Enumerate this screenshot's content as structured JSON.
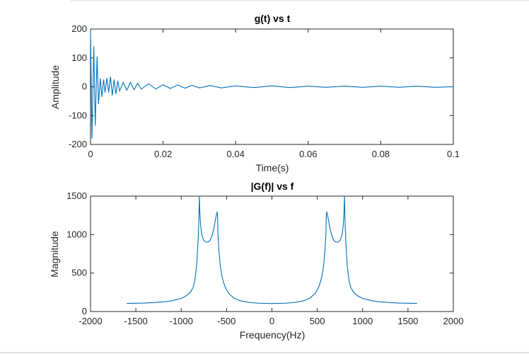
{
  "chart_data": [
    {
      "type": "line",
      "title": "g(t) vs t",
      "xlabel": "Time(s)",
      "ylabel": "Amplitude",
      "xlim": [
        0,
        0.1
      ],
      "ylim": [
        -200,
        200
      ],
      "xticks": [
        0,
        0.02,
        0.04,
        0.06,
        0.08,
        0.1
      ],
      "xtick_labels": [
        "0",
        "0.02",
        "0.04",
        "0.06",
        "0.08",
        "0.1"
      ],
      "yticks": [
        -200,
        -100,
        0,
        100,
        200
      ],
      "ytick_labels": [
        "-200",
        "-100",
        "0",
        "100",
        "200"
      ],
      "grid": false,
      "series": [
        {
          "color": "#0072BD",
          "x": [
            0,
            0.0004,
            0.0009,
            0.0013,
            0.0018,
            0.0022,
            0.0027,
            0.0031,
            0.0036,
            0.004,
            0.0045,
            0.005,
            0.0055,
            0.006,
            0.0065,
            0.007,
            0.0075,
            0.008,
            0.009,
            0.01,
            0.011,
            0.012,
            0.013,
            0.014,
            0.016,
            0.018,
            0.02,
            0.022,
            0.024,
            0.026,
            0.028,
            0.03,
            0.033,
            0.036,
            0.04,
            0.045,
            0.05,
            0.055,
            0.06,
            0.065,
            0.07,
            0.075,
            0.08,
            0.085,
            0.09,
            0.095,
            0.1
          ],
          "y": [
            195,
            -180,
            140,
            -135,
            105,
            -60,
            30,
            -35,
            25,
            -20,
            30,
            -20,
            35,
            -30,
            25,
            -25,
            20,
            -15,
            15,
            -12,
            15,
            -10,
            12,
            -8,
            10,
            -8,
            7,
            -6,
            6,
            -5,
            5,
            -4,
            4,
            -4,
            3,
            -3,
            3,
            -3,
            2,
            -2,
            2,
            -2,
            2,
            -2,
            2,
            -2,
            0
          ]
        }
      ]
    },
    {
      "type": "line",
      "title": "|G(f)| vs f",
      "xlabel": "Frequency(Hz)",
      "ylabel": "Magnitude",
      "xlim": [
        -2000,
        2000
      ],
      "ylim": [
        0,
        1500
      ],
      "xticks": [
        -2000,
        -1500,
        -1000,
        -500,
        0,
        500,
        1000,
        1500,
        2000
      ],
      "xtick_labels": [
        "-2000",
        "-1500",
        "-1000",
        "-500",
        "0",
        "500",
        "1000",
        "1500",
        "2000"
      ],
      "yticks": [
        0,
        500,
        1000,
        1500
      ],
      "ytick_labels": [
        "0",
        "500",
        "1000",
        "1500"
      ],
      "grid": false,
      "series": [
        {
          "color": "#0072BD",
          "x": [
            -1600,
            -1400,
            -1200,
            -1100,
            -1000,
            -950,
            -900,
            -870,
            -850,
            -830,
            -815,
            -805,
            -800,
            -795,
            -785,
            -770,
            -750,
            -720,
            -700,
            -680,
            -660,
            -640,
            -625,
            -612,
            -605,
            -600,
            -595,
            -585,
            -570,
            -550,
            -520,
            -480,
            -420,
            -350,
            -250,
            -150,
            0,
            150,
            250,
            350,
            420,
            480,
            520,
            550,
            570,
            585,
            595,
            600,
            605,
            612,
            625,
            640,
            660,
            680,
            700,
            720,
            750,
            770,
            785,
            795,
            800,
            805,
            815,
            830,
            850,
            870,
            900,
            950,
            1000,
            1100,
            1200,
            1400,
            1600
          ],
          "y": [
            105,
            110,
            125,
            140,
            170,
            200,
            250,
            310,
            400,
            600,
            900,
            1200,
            1500,
            1300,
            1100,
            980,
            920,
            900,
            905,
            930,
            990,
            1080,
            1180,
            1260,
            1290,
            1270,
            1000,
            800,
            600,
            450,
            330,
            240,
            175,
            140,
            118,
            108,
            104,
            108,
            118,
            140,
            175,
            240,
            330,
            450,
            600,
            800,
            1000,
            1270,
            1290,
            1260,
            1180,
            1080,
            990,
            930,
            905,
            900,
            920,
            980,
            1100,
            1300,
            1500,
            1200,
            900,
            600,
            400,
            310,
            250,
            200,
            170,
            140,
            125,
            110,
            105
          ]
        }
      ]
    }
  ]
}
